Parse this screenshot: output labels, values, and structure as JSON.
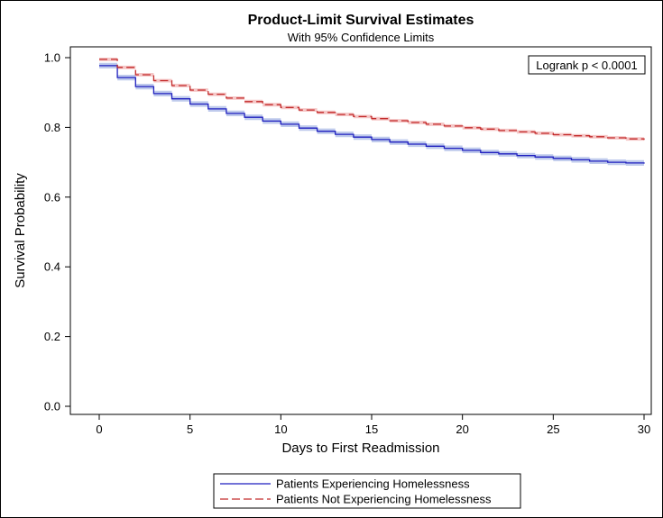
{
  "chart_data": {
    "type": "line",
    "title": "Product-Limit Survival Estimates",
    "subtitle": "With 95% Confidence Limits",
    "xlabel": "Days to First Readmission",
    "ylabel": "Survival Probability",
    "xlim": [
      0,
      30
    ],
    "ylim": [
      0,
      1
    ],
    "xticks": [
      0,
      5,
      10,
      15,
      20,
      25,
      30
    ],
    "yticks": [
      0.0,
      0.2,
      0.4,
      0.6,
      0.8,
      1.0
    ],
    "xtick_labels": [
      "0",
      "5",
      "10",
      "15",
      "20",
      "25",
      "30"
    ],
    "ytick_labels": [
      "0.0",
      "0.2",
      "0.4",
      "0.6",
      "0.8",
      "1.0"
    ],
    "annotation": "Logrank p < 0.0001",
    "legend_position": "bottom",
    "grid": false,
    "step": true,
    "x": [
      0,
      1,
      2,
      3,
      4,
      5,
      6,
      7,
      8,
      9,
      10,
      11,
      12,
      13,
      14,
      15,
      16,
      17,
      18,
      19,
      20,
      21,
      22,
      23,
      24,
      25,
      26,
      27,
      28,
      29,
      30
    ],
    "series": [
      {
        "name": "Patients Experiencing Homelessness",
        "color": "#1f1fbf",
        "band_color": "#a9b8e6",
        "line_style": "solid",
        "values": [
          0.977,
          0.943,
          0.917,
          0.897,
          0.882,
          0.867,
          0.853,
          0.84,
          0.829,
          0.818,
          0.809,
          0.798,
          0.789,
          0.78,
          0.772,
          0.765,
          0.758,
          0.752,
          0.746,
          0.74,
          0.734,
          0.728,
          0.724,
          0.719,
          0.715,
          0.711,
          0.707,
          0.703,
          0.7,
          0.698,
          0.696
        ],
        "ci_width": 0.008
      },
      {
        "name": "Patients Not Experiencing Homelessness",
        "color": "#c22a2a",
        "band_color": "#f1b3b3",
        "line_style": "dashed",
        "values": [
          0.995,
          0.972,
          0.951,
          0.934,
          0.92,
          0.907,
          0.895,
          0.884,
          0.874,
          0.865,
          0.857,
          0.85,
          0.843,
          0.837,
          0.831,
          0.825,
          0.819,
          0.814,
          0.809,
          0.804,
          0.799,
          0.795,
          0.791,
          0.787,
          0.783,
          0.779,
          0.776,
          0.773,
          0.77,
          0.767,
          0.764
        ],
        "ci_width": 0.005
      }
    ]
  }
}
